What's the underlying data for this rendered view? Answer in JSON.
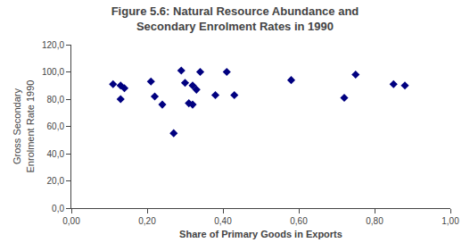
{
  "chart_data": {
    "type": "scatter",
    "title": "Figure 5.6: Natural Resource Abundance and\nSecondary Enrolment Rates in 1990",
    "x_label": "Share of Primary Goods in Exports",
    "y_label": "Gross Secondary\nEnrolment Rate 1990",
    "x": [
      0.11,
      0.13,
      0.13,
      0.14,
      0.21,
      0.22,
      0.24,
      0.27,
      0.29,
      0.3,
      0.31,
      0.32,
      0.32,
      0.33,
      0.34,
      0.38,
      0.41,
      0.43,
      0.58,
      0.72,
      0.75,
      0.85,
      0.88
    ],
    "values": [
      91,
      90,
      80,
      88,
      93,
      82,
      76,
      55,
      101,
      92,
      77,
      76,
      90,
      87,
      100,
      83,
      100,
      83,
      94,
      81,
      98,
      91,
      90
    ],
    "color": "#000080",
    "marker": "diamond",
    "xlim": [
      0.0,
      1.0
    ],
    "ylim": [
      0.0,
      120.0
    ],
    "xticks": [
      {
        "value": 0.0,
        "label": "0,00"
      },
      {
        "value": 0.2,
        "label": "0,20"
      },
      {
        "value": 0.4,
        "label": "0,40"
      },
      {
        "value": 0.6,
        "label": "0,60"
      },
      {
        "value": 0.8,
        "label": "0,80"
      },
      {
        "value": 1.0,
        "label": "1,00"
      }
    ],
    "yticks": [
      {
        "value": 0.0,
        "label": "0,0"
      },
      {
        "value": 20.0,
        "label": "20,0"
      },
      {
        "value": 40.0,
        "label": "40,0"
      },
      {
        "value": 60.0,
        "label": "60,0"
      },
      {
        "value": 80.0,
        "label": "80,0"
      },
      {
        "value": 100.0,
        "label": "100,0"
      },
      {
        "value": 120.0,
        "label": "120,0"
      }
    ],
    "grid": false
  }
}
